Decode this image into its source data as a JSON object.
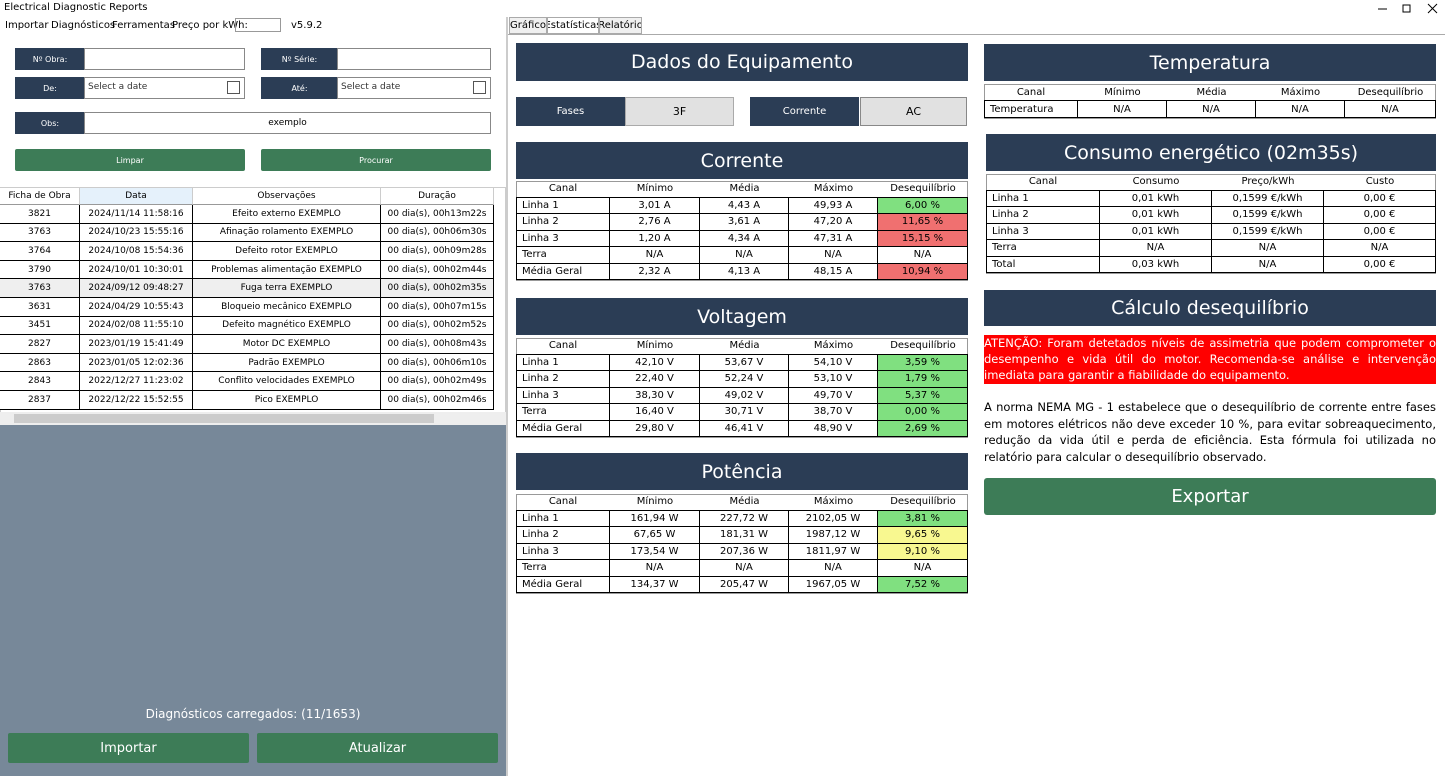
{
  "window": {
    "title": "Electrical Diagnostic Reports"
  },
  "menu": {
    "items": [
      "Importar",
      "Diagnósticos",
      "Ferramentas"
    ],
    "price_label": "Preço por kWh:",
    "version": "v5.9.2"
  },
  "filters": {
    "obra": "Nº Obra:",
    "serie": "Nº Série:",
    "de": "De:",
    "ate": "Até:",
    "obs": "Obs:",
    "date_placeholder": "Select a date",
    "obs_value": "exemplo",
    "limpar": "Limpar",
    "procurar": "Procurar"
  },
  "list": {
    "headers": [
      "Ficha de Obra",
      "Data",
      "Observações",
      "Duração"
    ],
    "rows": [
      [
        "3821",
        "2024/11/14 11:58:16",
        "Efeito externo EXEMPLO",
        "00 dia(s), 00h13m22s"
      ],
      [
        "3763",
        "2024/10/23 15:55:16",
        "Afinação rolamento EXEMPLO",
        "00 dia(s), 00h06m30s"
      ],
      [
        "3764",
        "2024/10/08 15:54:36",
        "Defeito rotor EXEMPLO",
        "00 dia(s), 00h09m28s"
      ],
      [
        "3790",
        "2024/10/01 10:30:01",
        "Problemas alimentação EXEMPLO",
        "00 dia(s), 00h02m44s"
      ],
      [
        "3763",
        "2024/09/12 09:48:27",
        "Fuga terra EXEMPLO",
        "00 dia(s), 00h02m35s"
      ],
      [
        "3631",
        "2024/04/29 10:55:43",
        "Bloqueio mecânico EXEMPLO",
        "00 dia(s), 00h07m15s"
      ],
      [
        "3451",
        "2024/02/08 11:55:10",
        "Defeito magnético EXEMPLO",
        "00 dia(s), 00h02m52s"
      ],
      [
        "2827",
        "2023/01/19 15:41:49",
        "Motor DC EXEMPLO",
        "00 dia(s), 00h08m43s"
      ],
      [
        "2863",
        "2023/01/05 12:02:36",
        "Padrão EXEMPLO",
        "00 dia(s), 00h06m10s"
      ],
      [
        "2843",
        "2022/12/27 11:23:02",
        "Conflito velocidades EXEMPLO",
        "00 dia(s), 00h02m49s"
      ],
      [
        "2837",
        "2022/12/22 15:52:55",
        "Pico EXEMPLO",
        "00 dia(s), 00h02m46s"
      ]
    ]
  },
  "status": "Diagnósticos carregados: (11/1653)",
  "bottom_buttons": [
    "Importar",
    "Atualizar"
  ],
  "tabs": [
    "Gráfico",
    "Estatísticas",
    "Relatório"
  ],
  "equipment": {
    "title": "Dados do Equipamento",
    "fases_label": "Fases",
    "fases_value": "3F",
    "corrente_label": "Corrente",
    "corrente_value": "AC"
  },
  "corrente": {
    "title": "Corrente",
    "headers": [
      "Canal",
      "Mínimo",
      "Média",
      "Máximo",
      "Desequilíbrio"
    ],
    "rows": [
      [
        "Linha 1",
        "3,01 A",
        "4,43 A",
        "49,93 A",
        "6,00 %"
      ],
      [
        "Linha 2",
        "2,76 A",
        "3,61 A",
        "47,20 A",
        "11,65 %"
      ],
      [
        "Linha 3",
        "1,20 A",
        "4,34 A",
        "47,31 A",
        "15,15 %"
      ],
      [
        "Terra",
        "N/A",
        "N/A",
        "N/A",
        "N/A"
      ],
      [
        "Média Geral",
        "2,32 A",
        "4,13 A",
        "48,15 A",
        "10,94 %"
      ]
    ],
    "highlight": [
      "#80e080",
      "#f07070",
      "#f07070",
      null,
      "#f07070"
    ]
  },
  "voltagem": {
    "title": "Voltagem",
    "headers": [
      "Canal",
      "Mínimo",
      "Média",
      "Máximo",
      "Desequilíbrio"
    ],
    "rows": [
      [
        "Linha 1",
        "42,10 V",
        "53,67 V",
        "54,10 V",
        "3,59 %"
      ],
      [
        "Linha 2",
        "22,40 V",
        "52,24 V",
        "53,10 V",
        "1,79 %"
      ],
      [
        "Linha 3",
        "38,30 V",
        "49,02 V",
        "49,70 V",
        "5,37 %"
      ],
      [
        "Terra",
        "16,40 V",
        "30,71 V",
        "38,70 V",
        "0,00 %"
      ],
      [
        "Média Geral",
        "29,80 V",
        "46,41 V",
        "48,90 V",
        "2,69 %"
      ]
    ],
    "highlight": [
      "#80e080",
      "#80e080",
      "#80e080",
      "#80e080",
      "#80e080"
    ]
  },
  "potencia": {
    "title": "Potência",
    "headers": [
      "Canal",
      "Mínimo",
      "Média",
      "Máximo",
      "Desequilíbrio"
    ],
    "rows": [
      [
        "Linha 1",
        "161,94 W",
        "227,72 W",
        "2102,05 W",
        "3,81 %"
      ],
      [
        "Linha 2",
        "67,65 W",
        "181,31 W",
        "1987,12 W",
        "9,65 %"
      ],
      [
        "Linha 3",
        "173,54 W",
        "207,36 W",
        "1811,97 W",
        "9,10 %"
      ],
      [
        "Terra",
        "N/A",
        "N/A",
        "N/A",
        "N/A"
      ],
      [
        "Média Geral",
        "134,37 W",
        "205,47 W",
        "1967,05 W",
        "7,52 %"
      ]
    ],
    "highlight": [
      "#80e080",
      "#f8f890",
      "#f8f890",
      null,
      "#80e080"
    ]
  },
  "temperatura": {
    "title": "Temperatura",
    "headers": [
      "Canal",
      "Mínimo",
      "Média",
      "Máximo",
      "Desequilíbrio"
    ],
    "rows": [
      [
        "Temperatura",
        "N/A",
        "N/A",
        "N/A",
        "N/A"
      ]
    ]
  },
  "consumo": {
    "title": "Consumo energético (02m35s)",
    "headers": [
      "Canal",
      "Consumo",
      "Preço/kWh",
      "Custo"
    ],
    "rows": [
      [
        "Linha 1",
        "0,01 kWh",
        "0,1599 €/kWh",
        "0,00 €"
      ],
      [
        "Linha 2",
        "0,01 kWh",
        "0,1599 €/kWh",
        "0,00 €"
      ],
      [
        "Linha 3",
        "0,01 kWh",
        "0,1599 €/kWh",
        "0,00 €"
      ],
      [
        "Terra",
        "N/A",
        "N/A",
        "N/A"
      ],
      [
        "Total",
        "0,03 kWh",
        "N/A",
        "0,00 €"
      ]
    ]
  },
  "calculo": {
    "title": "Cálculo desequilíbrio",
    "warning": "ATENÇÃO: Foram detetados níveis de assimetria que podem comprometer o desempenho e vida útil do motor. Recomenda-se análise e intervenção imediata para garantir a fiabilidade do equipamento.",
    "text": "A norma NEMA MG - 1 estabelece que o desequilíbrio de corrente entre fases em motores elétricos não deve exceder 10 %, para evitar sobreaquecimento, redução da vida útil e perda de eficiência. Esta fórmula foi utilizada no relatório para calcular o desequilíbrio observado.",
    "export": "Exportar"
  }
}
